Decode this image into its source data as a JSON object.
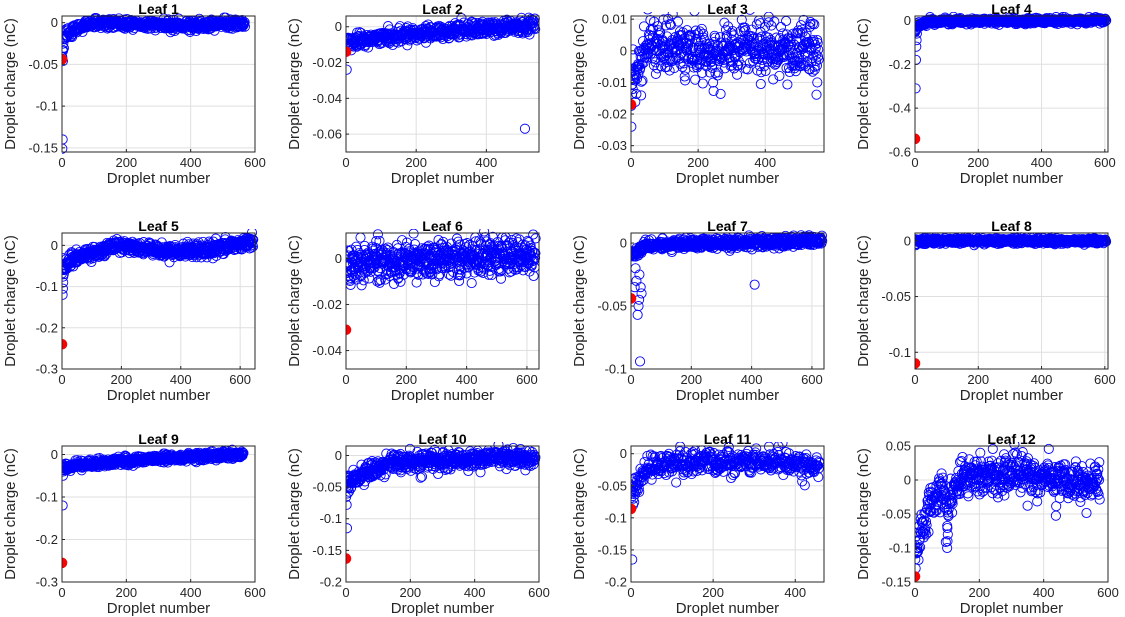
{
  "colors": {
    "circle": "#0000ff",
    "highlight": "#ff0000",
    "grid": "#dfdfdf",
    "axis": "#262626"
  },
  "chart_data": [
    {
      "type": "scatter",
      "title": "Leaf 1",
      "xlabel": "Droplet number",
      "ylabel": "Droplet charge (nC)",
      "xlim": [
        0,
        600
      ],
      "ylim": [
        -0.155,
        0.008
      ],
      "xticks": [
        0,
        200,
        400,
        600
      ],
      "yticks": [
        0,
        -0.05,
        -0.1,
        -0.15
      ],
      "yticklabels": [
        "0",
        "-0.05",
        "-0.1",
        "-0.15"
      ],
      "grid": true,
      "n": 570,
      "highlight": {
        "x": 0,
        "y": -0.044
      },
      "outliers": [
        [
          2,
          -0.14
        ],
        [
          1,
          -0.151
        ],
        [
          3,
          -0.046
        ]
      ],
      "trend": [
        [
          0,
          -0.04
        ],
        [
          10,
          -0.015
        ],
        [
          40,
          -0.008
        ],
        [
          100,
          0
        ],
        [
          200,
          -0.002
        ],
        [
          400,
          -0.003
        ],
        [
          570,
          -0.001
        ]
      ],
      "spread": 0.003
    },
    {
      "type": "scatter",
      "title": "Leaf 2",
      "xlabel": "Droplet number",
      "ylabel": "Droplet charge (nC)",
      "xlim": [
        0,
        550
      ],
      "ylim": [
        -0.07,
        0.006
      ],
      "xticks": [
        0,
        200,
        400
      ],
      "yticks": [
        0,
        -0.02,
        -0.04,
        -0.06
      ],
      "yticklabels": [
        "0",
        "-0.02",
        "-0.04",
        "-0.06"
      ],
      "grid": true,
      "n": 540,
      "highlight": {
        "x": 0,
        "y": -0.014
      },
      "outliers": [
        [
          2,
          -0.024
        ],
        [
          510,
          -0.057
        ]
      ],
      "trend": [
        [
          0,
          -0.008
        ],
        [
          100,
          -0.006
        ],
        [
          300,
          -0.002
        ],
        [
          540,
          0.001
        ]
      ],
      "spread": 0.002
    },
    {
      "type": "scatter",
      "title": "Leaf 3",
      "xlabel": "Droplet number",
      "ylabel": "Droplet charge (nC)",
      "xlim": [
        0,
        575
      ],
      "ylim": [
        -0.032,
        0.011
      ],
      "xticks": [
        0,
        200,
        400
      ],
      "yticks": [
        0.01,
        0,
        -0.01,
        -0.02,
        -0.03
      ],
      "yticklabels": [
        "0.01",
        "0",
        "-0.01",
        "-0.02",
        "-0.03"
      ],
      "grid": true,
      "n": 560,
      "highlight": {
        "x": 0,
        "y": -0.017
      },
      "outliers": [
        [
          1,
          -0.024
        ],
        [
          410,
          0.009
        ],
        [
          555,
          -0.01
        ]
      ],
      "trend": [
        [
          0,
          -0.014
        ],
        [
          20,
          -0.006
        ],
        [
          50,
          0.002
        ],
        [
          150,
          0.001
        ],
        [
          230,
          -0.003
        ],
        [
          300,
          0.001
        ],
        [
          560,
          0
        ]
      ],
      "spread": 0.004
    },
    {
      "type": "scatter",
      "title": "Leaf 4",
      "xlabel": "Droplet number",
      "ylabel": "Droplet charge (nC)",
      "xlim": [
        0,
        610
      ],
      "ylim": [
        -0.6,
        0.02
      ],
      "xticks": [
        0,
        200,
        400,
        600
      ],
      "yticks": [
        0,
        -0.2,
        -0.4,
        -0.6
      ],
      "yticklabels": [
        "0",
        "-0.2",
        "-0.4",
        "-0.6"
      ],
      "grid": true,
      "n": 605,
      "highlight": {
        "x": 0,
        "y": -0.54
      },
      "outliers": [
        [
          2,
          -0.31
        ],
        [
          3,
          -0.18
        ],
        [
          4,
          -0.12
        ],
        [
          5,
          -0.09
        ],
        [
          6,
          -0.06
        ],
        [
          8,
          -0.03
        ]
      ],
      "trend": [
        [
          0,
          -0.05
        ],
        [
          10,
          -0.02
        ],
        [
          50,
          -0.005
        ],
        [
          600,
          0
        ]
      ],
      "spread": 0.006
    },
    {
      "type": "scatter",
      "title": "Leaf 5",
      "xlabel": "Droplet number",
      "ylabel": "Droplet charge (nC)",
      "xlim": [
        0,
        650
      ],
      "ylim": [
        -0.3,
        0.03
      ],
      "xticks": [
        0,
        200,
        400,
        600
      ],
      "yticks": [
        0,
        -0.1,
        -0.2,
        -0.3
      ],
      "yticklabels": [
        "0",
        "-0.1",
        "-0.2",
        "-0.3"
      ],
      "grid": true,
      "n": 645,
      "highlight": {
        "x": 0,
        "y": -0.24
      },
      "outliers": [
        [
          2,
          -0.12
        ],
        [
          3,
          -0.105
        ],
        [
          4,
          -0.09
        ],
        [
          6,
          -0.07
        ],
        [
          8,
          -0.06
        ]
      ],
      "trend": [
        [
          0,
          -0.06
        ],
        [
          20,
          -0.04
        ],
        [
          100,
          -0.02
        ],
        [
          180,
          0
        ],
        [
          300,
          -0.01
        ],
        [
          400,
          -0.015
        ],
        [
          500,
          -0.01
        ],
        [
          645,
          0.01
        ]
      ],
      "spread": 0.008
    },
    {
      "type": "scatter",
      "title": "Leaf 6",
      "xlabel": "Droplet number",
      "ylabel": "Droplet charge (nC)",
      "xlim": [
        0,
        640
      ],
      "ylim": [
        -0.048,
        0.011
      ],
      "xticks": [
        0,
        200,
        400,
        600
      ],
      "yticks": [
        0,
        -0.02,
        -0.04
      ],
      "yticklabels": [
        "0",
        "-0.02",
        "-0.04"
      ],
      "grid": true,
      "n": 630,
      "highlight": {
        "x": 0,
        "y": -0.031
      },
      "outliers": [],
      "trend": [
        [
          0,
          -0.002
        ],
        [
          630,
          0.001
        ]
      ],
      "spread": 0.004
    },
    {
      "type": "scatter",
      "title": "Leaf 7",
      "xlabel": "Droplet number",
      "ylabel": "Droplet charge (nC)",
      "xlim": [
        0,
        640
      ],
      "ylim": [
        -0.1,
        0.008
      ],
      "xticks": [
        0,
        200,
        400,
        600
      ],
      "yticks": [
        0,
        -0.05,
        -0.1
      ],
      "yticklabels": [
        "0",
        "-0.05",
        "-0.1"
      ],
      "grid": true,
      "n": 635,
      "highlight": {
        "x": 0,
        "y": -0.044
      },
      "outliers": [
        [
          30,
          -0.094
        ],
        [
          22,
          -0.057
        ],
        [
          25,
          -0.05
        ],
        [
          27,
          -0.045
        ],
        [
          18,
          -0.03
        ],
        [
          15,
          -0.02
        ],
        [
          35,
          -0.04
        ],
        [
          32,
          -0.035
        ],
        [
          28,
          -0.025
        ],
        [
          410,
          -0.033
        ],
        [
          12,
          -0.035
        ]
      ],
      "trend": [
        [
          0,
          -0.01
        ],
        [
          50,
          -0.002
        ],
        [
          300,
          0
        ],
        [
          635,
          0.002
        ]
      ],
      "spread": 0.002
    },
    {
      "type": "scatter",
      "title": "Leaf 8",
      "xlabel": "Droplet number",
      "ylabel": "Droplet charge (nC)",
      "xlim": [
        0,
        610
      ],
      "ylim": [
        -0.115,
        0.007
      ],
      "xticks": [
        0,
        200,
        400,
        600
      ],
      "yticks": [
        0,
        -0.05,
        -0.1
      ],
      "yticklabels": [
        "0",
        "-0.05",
        "-0.1"
      ],
      "grid": true,
      "n": 605,
      "highlight": {
        "x": 0,
        "y": -0.11
      },
      "outliers": [
        [
          2,
          -0.004
        ],
        [
          3,
          -0.003
        ]
      ],
      "trend": [
        [
          0,
          0
        ],
        [
          605,
          0
        ]
      ],
      "spread": 0.0012
    },
    {
      "type": "scatter",
      "title": "Leaf 9",
      "xlabel": "Droplet number",
      "ylabel": "Droplet charge (nC)",
      "xlim": [
        0,
        600
      ],
      "ylim": [
        -0.3,
        0.02
      ],
      "xticks": [
        0,
        200,
        400,
        600
      ],
      "yticks": [
        0,
        -0.1,
        -0.2,
        -0.3
      ],
      "yticklabels": [
        "0",
        "-0.1",
        "-0.2",
        "-0.3"
      ],
      "grid": true,
      "n": 565,
      "highlight": {
        "x": 0,
        "y": -0.255
      },
      "outliers": [
        [
          2,
          -0.12
        ],
        [
          3,
          -0.05
        ],
        [
          4,
          -0.04
        ]
      ],
      "trend": [
        [
          0,
          -0.03
        ],
        [
          100,
          -0.02
        ],
        [
          300,
          -0.01
        ],
        [
          565,
          0
        ]
      ],
      "spread": 0.005
    },
    {
      "type": "scatter",
      "title": "Leaf 10",
      "xlabel": "Droplet number",
      "ylabel": "Droplet charge (nC)",
      "xlim": [
        0,
        600
      ],
      "ylim": [
        -0.2,
        0.015
      ],
      "xticks": [
        0,
        200,
        400,
        600
      ],
      "yticks": [
        0,
        -0.05,
        -0.1,
        -0.15,
        -0.2
      ],
      "yticklabels": [
        "0",
        "-0.05",
        "-0.1",
        "-0.15",
        "-0.2"
      ],
      "grid": true,
      "n": 590,
      "highlight": {
        "x": 0,
        "y": -0.163
      },
      "outliers": [
        [
          3,
          -0.115
        ],
        [
          2,
          -0.078
        ],
        [
          5,
          -0.06
        ],
        [
          7,
          -0.05
        ]
      ],
      "trend": [
        [
          0,
          -0.045
        ],
        [
          50,
          -0.03
        ],
        [
          150,
          -0.012
        ],
        [
          300,
          -0.008
        ],
        [
          490,
          -0.002
        ],
        [
          590,
          -0.005
        ]
      ],
      "spread": 0.007
    },
    {
      "type": "scatter",
      "title": "Leaf 11",
      "xlabel": "Droplet number",
      "ylabel": "Droplet charge (nC)",
      "xlim": [
        0,
        470
      ],
      "ylim": [
        -0.2,
        0.012
      ],
      "xticks": [
        0,
        200,
        400
      ],
      "yticks": [
        0,
        -0.05,
        -0.1,
        -0.15,
        -0.2
      ],
      "yticklabels": [
        "0",
        "-0.05",
        "-0.1",
        "-0.15",
        "-0.2"
      ],
      "grid": true,
      "n": 460,
      "highlight": {
        "x": 0,
        "y": -0.086
      },
      "outliers": [
        [
          3,
          -0.165
        ],
        [
          5,
          -0.08
        ],
        [
          6,
          -0.07
        ],
        [
          8,
          -0.06
        ],
        [
          110,
          -0.045
        ]
      ],
      "trend": [
        [
          0,
          -0.06
        ],
        [
          20,
          -0.04
        ],
        [
          50,
          -0.02
        ],
        [
          100,
          -0.012
        ],
        [
          300,
          -0.012
        ],
        [
          460,
          -0.018
        ]
      ],
      "spread": 0.009
    },
    {
      "type": "scatter",
      "title": "Leaf 12",
      "xlabel": "Droplet number",
      "ylabel": "Droplet charge (nC)",
      "xlim": [
        0,
        600
      ],
      "ylim": [
        -0.15,
        0.05
      ],
      "xticks": [
        0,
        200,
        400,
        600
      ],
      "yticks": [
        0.05,
        0,
        -0.05,
        -0.1,
        -0.15
      ],
      "yticklabels": [
        "0.05",
        "0",
        "-0.05",
        "-0.1",
        "-0.15"
      ],
      "grid": true,
      "n": 575,
      "highlight": {
        "x": 0,
        "y": -0.142
      },
      "outliers": [
        [
          2,
          -0.13
        ],
        [
          100,
          -0.1
        ],
        [
          101,
          -0.09
        ],
        [
          102,
          -0.08
        ],
        [
          203,
          0.04
        ],
        [
          6,
          -0.1
        ]
      ],
      "trend": [
        [
          0,
          -0.11
        ],
        [
          20,
          -0.07
        ],
        [
          60,
          -0.03
        ],
        [
          90,
          -0.02
        ],
        [
          100,
          -0.06
        ],
        [
          110,
          -0.02
        ],
        [
          160,
          0.005
        ],
        [
          350,
          0.01
        ],
        [
          450,
          -0.002
        ],
        [
          575,
          -0.008
        ]
      ],
      "spread": 0.014
    }
  ]
}
